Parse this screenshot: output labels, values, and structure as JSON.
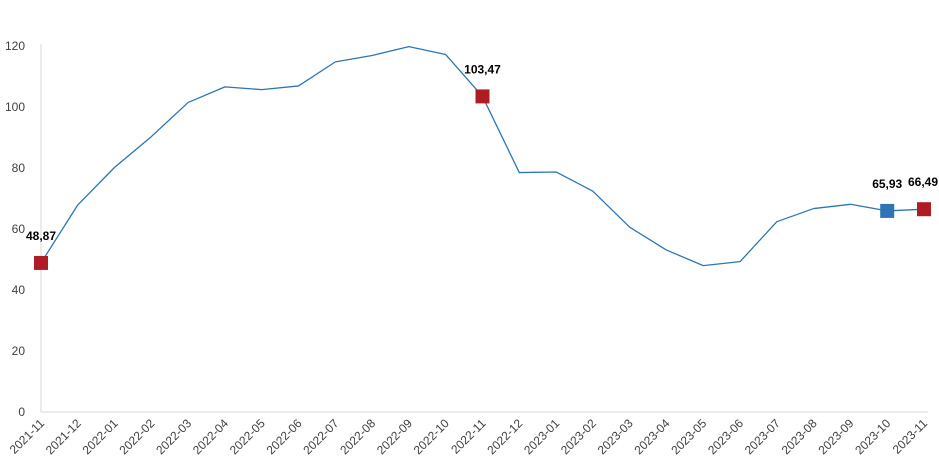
{
  "chart_data": {
    "type": "line",
    "title": "",
    "xlabel": "",
    "ylabel": "",
    "ylim": [
      0,
      120
    ],
    "y_ticks": [
      0,
      20,
      40,
      60,
      80,
      100,
      120
    ],
    "grid": false,
    "legend": "none",
    "categories": [
      "2021-11",
      "2021-12",
      "2022-01",
      "2022-02",
      "2022-03",
      "2022-04",
      "2022-05",
      "2022-06",
      "2022-07",
      "2022-08",
      "2022-09",
      "2022-10",
      "2022-11",
      "2022-12",
      "2023-01",
      "2023-02",
      "2023-03",
      "2023-04",
      "2023-05",
      "2023-06",
      "2023-07",
      "2023-08",
      "2023-09",
      "2023-10",
      "2023-11"
    ],
    "series": [
      {
        "values": [
          48.87,
          67.9,
          80.2,
          90.3,
          101.5,
          106.6,
          105.7,
          106.9,
          114.8,
          116.9,
          119.8,
          117.2,
          103.47,
          78.5,
          78.7,
          72.4,
          60.6,
          53.1,
          48.0,
          49.3,
          62.4,
          66.7,
          68.1,
          65.93,
          66.49
        ],
        "color": "#2e75b6"
      }
    ],
    "highlighted_points": [
      {
        "category": "2021-11",
        "value": 48.87,
        "label": "48,87",
        "color": "#b01c24"
      },
      {
        "category": "2022-11",
        "value": 103.47,
        "label": "103,47",
        "color": "#b01c24"
      },
      {
        "category": "2023-10",
        "value": 65.93,
        "label": "65,93",
        "color": "#2e75b6"
      },
      {
        "category": "2023-11",
        "value": 66.49,
        "label": "66,49",
        "color": "#b01c24"
      }
    ],
    "axis_color": "#d9d9d9"
  }
}
